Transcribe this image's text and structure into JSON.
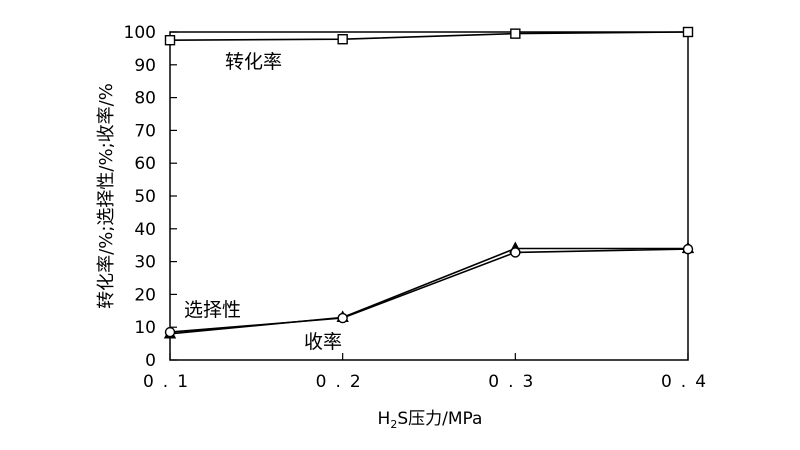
{
  "chart_data": {
    "type": "line",
    "xlabel_parts": [
      "H",
      "2",
      "S压力/MPa"
    ],
    "ylabel": "转化率/%;选择性/%;收率/%",
    "x_ticks": [
      "0.1",
      "0.2",
      "0.3",
      "0.4"
    ],
    "y_ticks": [
      "0",
      "10",
      "20",
      "30",
      "40",
      "50",
      "60",
      "70",
      "80",
      "90",
      "100"
    ],
    "xlim": [
      0.1,
      0.4
    ],
    "ylim": [
      0,
      100
    ],
    "grid": false,
    "series": [
      {
        "name": "转化率",
        "marker": "square",
        "x": [
          0.1,
          0.2,
          0.3,
          0.4
        ],
        "y": [
          97.5,
          97.8,
          99.5,
          100
        ]
      },
      {
        "name": "选择性",
        "marker": "triangle",
        "x": [
          0.1,
          0.2,
          0.3,
          0.4
        ],
        "y": [
          8,
          13,
          34,
          34
        ]
      },
      {
        "name": "收率",
        "marker": "circle",
        "x": [
          0.1,
          0.2,
          0.3,
          0.4
        ],
        "y": [
          8.5,
          12.8,
          32.8,
          33.8
        ]
      }
    ]
  }
}
